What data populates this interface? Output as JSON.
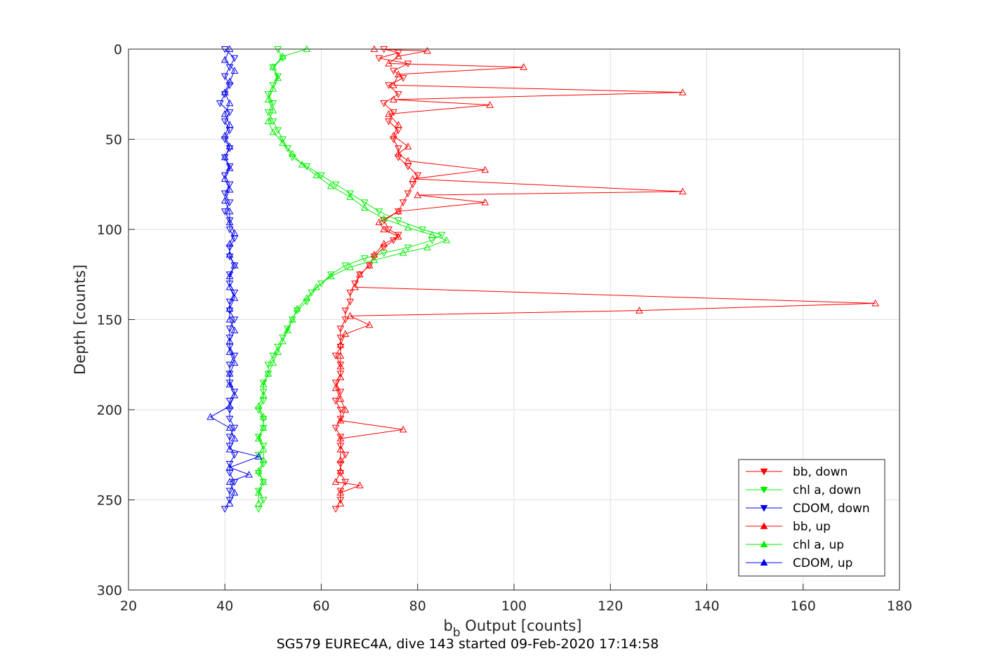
{
  "chart_data": {
    "type": "scatter",
    "title": "",
    "xlabel_main": "b",
    "xlabel_sub": "b",
    "xlabel_rest": " Output [counts]",
    "ylabel": "Depth [counts]",
    "caption": "SG579 EUREC4A, dive 143 started 09-Feb-2020 17:14:58",
    "xlim": [
      20,
      180
    ],
    "ylim": [
      300,
      0
    ],
    "y_reversed": true,
    "xticks": [
      "20",
      "40",
      "60",
      "80",
      "100",
      "120",
      "140",
      "160",
      "180"
    ],
    "yticks": [
      "0",
      "50",
      "100",
      "150",
      "200",
      "250",
      "300"
    ],
    "grid": true,
    "legend_position": "bottom-right",
    "series": [
      {
        "name": "bb, down",
        "color": "#ff0000",
        "marker": "down",
        "points": [
          [
            73,
            0
          ],
          [
            76,
            2
          ],
          [
            72,
            5
          ],
          [
            78,
            8
          ],
          [
            75,
            12
          ],
          [
            77,
            16
          ],
          [
            74,
            20
          ],
          [
            76,
            25
          ],
          [
            73,
            30
          ],
          [
            75,
            35
          ],
          [
            74,
            40
          ],
          [
            76,
            45
          ],
          [
            75,
            50
          ],
          [
            76,
            55
          ],
          [
            76,
            60
          ],
          [
            78,
            65
          ],
          [
            80,
            70
          ],
          [
            79,
            75
          ],
          [
            78,
            80
          ],
          [
            77,
            85
          ],
          [
            76,
            90
          ],
          [
            73,
            95
          ],
          [
            74,
            100
          ],
          [
            76,
            103
          ],
          [
            75,
            106
          ],
          [
            73,
            110
          ],
          [
            71,
            115
          ],
          [
            70,
            120
          ],
          [
            68,
            125
          ],
          [
            67,
            130
          ],
          [
            66,
            135
          ],
          [
            66,
            140
          ],
          [
            65,
            145
          ],
          [
            65,
            150
          ],
          [
            64,
            155
          ],
          [
            64,
            160
          ],
          [
            64,
            165
          ],
          [
            63,
            170
          ],
          [
            64,
            175
          ],
          [
            64,
            180
          ],
          [
            63,
            185
          ],
          [
            64,
            190
          ],
          [
            63,
            195
          ],
          [
            64,
            200
          ],
          [
            64,
            205
          ],
          [
            63,
            210
          ],
          [
            64,
            215
          ],
          [
            64,
            220
          ],
          [
            65,
            225
          ],
          [
            64,
            230
          ],
          [
            64,
            235
          ],
          [
            65,
            240
          ],
          [
            64,
            245
          ],
          [
            64,
            250
          ],
          [
            63,
            255
          ]
        ]
      },
      {
        "name": "chl a, down",
        "color": "#00ee00",
        "marker": "down",
        "points": [
          [
            51,
            0
          ],
          [
            52,
            5
          ],
          [
            50,
            10
          ],
          [
            51,
            15
          ],
          [
            50,
            20
          ],
          [
            49,
            25
          ],
          [
            50,
            30
          ],
          [
            49,
            35
          ],
          [
            50,
            40
          ],
          [
            51,
            45
          ],
          [
            52,
            50
          ],
          [
            53,
            55
          ],
          [
            54,
            60
          ],
          [
            57,
            65
          ],
          [
            60,
            70
          ],
          [
            63,
            75
          ],
          [
            66,
            80
          ],
          [
            69,
            85
          ],
          [
            72,
            90
          ],
          [
            76,
            95
          ],
          [
            81,
            100
          ],
          [
            85,
            103
          ],
          [
            83,
            106
          ],
          [
            78,
            110
          ],
          [
            73,
            113
          ],
          [
            69,
            116
          ],
          [
            65,
            120
          ],
          [
            62,
            125
          ],
          [
            60,
            130
          ],
          [
            58,
            135
          ],
          [
            57,
            140
          ],
          [
            55,
            145
          ],
          [
            54,
            150
          ],
          [
            53,
            155
          ],
          [
            52,
            160
          ],
          [
            51,
            165
          ],
          [
            50,
            170
          ],
          [
            49,
            175
          ],
          [
            49,
            180
          ],
          [
            48,
            185
          ],
          [
            48,
            190
          ],
          [
            48,
            195
          ],
          [
            47,
            200
          ],
          [
            48,
            205
          ],
          [
            48,
            210
          ],
          [
            47,
            215
          ],
          [
            48,
            220
          ],
          [
            47,
            225
          ],
          [
            48,
            230
          ],
          [
            47,
            235
          ],
          [
            48,
            240
          ],
          [
            47,
            245
          ],
          [
            48,
            250
          ],
          [
            47,
            255
          ]
        ]
      },
      {
        "name": "CDOM, down",
        "color": "#0000ee",
        "marker": "down",
        "points": [
          [
            40,
            0
          ],
          [
            42,
            5
          ],
          [
            41,
            10
          ],
          [
            40,
            15
          ],
          [
            41,
            20
          ],
          [
            40,
            25
          ],
          [
            39,
            30
          ],
          [
            41,
            35
          ],
          [
            40,
            40
          ],
          [
            41,
            45
          ],
          [
            40,
            50
          ],
          [
            41,
            55
          ],
          [
            40,
            60
          ],
          [
            41,
            65
          ],
          [
            40,
            70
          ],
          [
            41,
            75
          ],
          [
            40,
            80
          ],
          [
            41,
            85
          ],
          [
            40,
            90
          ],
          [
            41,
            95
          ],
          [
            41,
            100
          ],
          [
            42,
            105
          ],
          [
            41,
            110
          ],
          [
            41,
            115
          ],
          [
            42,
            120
          ],
          [
            41,
            125
          ],
          [
            41,
            130
          ],
          [
            42,
            135
          ],
          [
            41,
            140
          ],
          [
            41,
            145
          ],
          [
            42,
            150
          ],
          [
            41,
            155
          ],
          [
            41,
            160
          ],
          [
            41,
            165
          ],
          [
            42,
            170
          ],
          [
            41,
            175
          ],
          [
            41,
            180
          ],
          [
            41,
            185
          ],
          [
            42,
            190
          ],
          [
            41,
            195
          ],
          [
            41,
            200
          ],
          [
            41,
            205
          ],
          [
            42,
            210
          ],
          [
            41,
            215
          ],
          [
            41,
            220
          ],
          [
            42,
            225
          ],
          [
            41,
            230
          ],
          [
            41,
            235
          ],
          [
            42,
            240
          ],
          [
            41,
            245
          ],
          [
            41,
            250
          ],
          [
            40,
            255
          ]
        ]
      },
      {
        "name": "bb, up",
        "color": "#ff0000",
        "marker": "up",
        "points": [
          [
            71,
            0
          ],
          [
            82,
            1
          ],
          [
            76,
            4
          ],
          [
            74,
            8
          ],
          [
            102,
            10
          ],
          [
            76,
            14
          ],
          [
            75,
            20
          ],
          [
            135,
            24
          ],
          [
            75,
            28
          ],
          [
            95,
            31
          ],
          [
            74,
            36
          ],
          [
            76,
            42
          ],
          [
            75,
            48
          ],
          [
            78,
            54
          ],
          [
            76,
            58
          ],
          [
            78,
            62
          ],
          [
            94,
            67
          ],
          [
            79,
            72
          ],
          [
            135,
            79
          ],
          [
            80,
            81
          ],
          [
            94,
            85
          ],
          [
            76,
            90
          ],
          [
            72,
            96
          ],
          [
            73,
            100
          ],
          [
            76,
            104
          ],
          [
            73,
            108
          ],
          [
            71,
            114
          ],
          [
            70,
            120
          ],
          [
            68,
            125
          ],
          [
            67,
            132
          ],
          [
            175,
            141
          ],
          [
            126,
            145
          ],
          [
            66,
            148
          ],
          [
            70,
            153
          ],
          [
            65,
            158
          ],
          [
            64,
            164
          ],
          [
            64,
            170
          ],
          [
            64,
            176
          ],
          [
            64,
            182
          ],
          [
            63,
            188
          ],
          [
            64,
            194
          ],
          [
            65,
            200
          ],
          [
            64,
            206
          ],
          [
            77,
            211
          ],
          [
            64,
            216
          ],
          [
            64,
            222
          ],
          [
            64,
            228
          ],
          [
            64,
            234
          ],
          [
            63,
            240
          ],
          [
            68,
            242
          ],
          [
            64,
            246
          ],
          [
            64,
            252
          ]
        ]
      },
      {
        "name": "chl a, up",
        "color": "#00ee00",
        "marker": "up",
        "points": [
          [
            57,
            0
          ],
          [
            52,
            4
          ],
          [
            50,
            10
          ],
          [
            51,
            16
          ],
          [
            50,
            22
          ],
          [
            49,
            28
          ],
          [
            50,
            34
          ],
          [
            49,
            40
          ],
          [
            50,
            46
          ],
          [
            52,
            52
          ],
          [
            54,
            58
          ],
          [
            56,
            64
          ],
          [
            59,
            70
          ],
          [
            62,
            76
          ],
          [
            66,
            82
          ],
          [
            69,
            88
          ],
          [
            73,
            94
          ],
          [
            78,
            99
          ],
          [
            83,
            103
          ],
          [
            86,
            106
          ],
          [
            82,
            110
          ],
          [
            77,
            113
          ],
          [
            71,
            117
          ],
          [
            66,
            121
          ],
          [
            62,
            126
          ],
          [
            59,
            132
          ],
          [
            57,
            138
          ],
          [
            55,
            144
          ],
          [
            54,
            150
          ],
          [
            53,
            156
          ],
          [
            52,
            162
          ],
          [
            51,
            168
          ],
          [
            50,
            174
          ],
          [
            49,
            180
          ],
          [
            48,
            186
          ],
          [
            48,
            192
          ],
          [
            47,
            198
          ],
          [
            48,
            204
          ],
          [
            48,
            210
          ],
          [
            47,
            216
          ],
          [
            48,
            222
          ],
          [
            48,
            228
          ],
          [
            47,
            234
          ],
          [
            48,
            240
          ],
          [
            47,
            246
          ],
          [
            47,
            252
          ]
        ]
      },
      {
        "name": "CDOM, up",
        "color": "#0000ee",
        "marker": "up",
        "points": [
          [
            41,
            0
          ],
          [
            40,
            6
          ],
          [
            42,
            12
          ],
          [
            41,
            18
          ],
          [
            40,
            24
          ],
          [
            41,
            30
          ],
          [
            40,
            36
          ],
          [
            41,
            42
          ],
          [
            40,
            48
          ],
          [
            41,
            54
          ],
          [
            40,
            60
          ],
          [
            41,
            66
          ],
          [
            40,
            72
          ],
          [
            41,
            78
          ],
          [
            40,
            84
          ],
          [
            41,
            90
          ],
          [
            41,
            96
          ],
          [
            42,
            102
          ],
          [
            41,
            108
          ],
          [
            41,
            114
          ],
          [
            42,
            120
          ],
          [
            41,
            126
          ],
          [
            41,
            132
          ],
          [
            42,
            138
          ],
          [
            41,
            144
          ],
          [
            41,
            150
          ],
          [
            42,
            156
          ],
          [
            41,
            162
          ],
          [
            41,
            168
          ],
          [
            42,
            174
          ],
          [
            41,
            180
          ],
          [
            41,
            186
          ],
          [
            42,
            192
          ],
          [
            41,
            198
          ],
          [
            37,
            204
          ],
          [
            41,
            210
          ],
          [
            42,
            216
          ],
          [
            41,
            222
          ],
          [
            47,
            226
          ],
          [
            41,
            232
          ],
          [
            45,
            236
          ],
          [
            41,
            240
          ],
          [
            42,
            246
          ],
          [
            41,
            252
          ]
        ]
      }
    ]
  }
}
